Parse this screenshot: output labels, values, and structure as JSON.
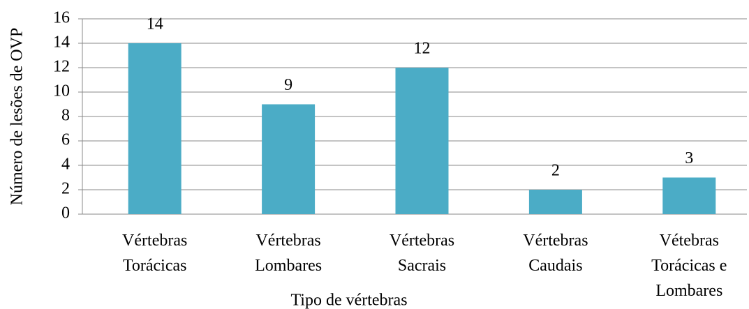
{
  "chart_data": {
    "type": "bar",
    "categories": [
      "Vértebras\nTorácicas",
      "Vértebras\nLombares",
      "Vértebras\nSacrais",
      "Vértebras\nCaudais",
      "Vétebras\nTorácicas e\nLombares"
    ],
    "values": [
      14,
      9,
      12,
      2,
      3
    ],
    "color": "#4bacc6",
    "ylim": [
      0,
      16
    ],
    "yticks": [
      0,
      2,
      4,
      6,
      8,
      10,
      12,
      14,
      16
    ],
    "grid": true,
    "x_label": "Tipo de vértebras",
    "y_label": "Número de lesões de OVP"
  }
}
